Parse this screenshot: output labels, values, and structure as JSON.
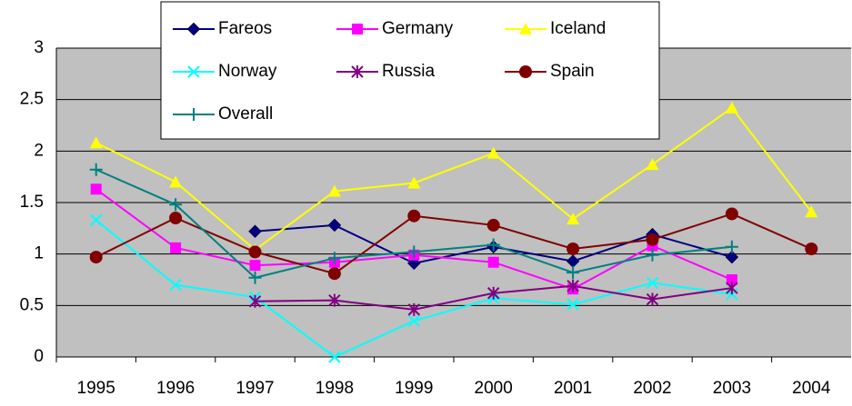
{
  "chart_data": {
    "type": "line",
    "categories": [
      "1995",
      "1996",
      "1997",
      "1998",
      "1999",
      "2000",
      "2001",
      "2002",
      "2003",
      "2004"
    ],
    "series": [
      {
        "name": "Fareos",
        "color": "#000080",
        "marker": "diamond",
        "values": [
          null,
          null,
          1.22,
          1.28,
          0.91,
          1.07,
          0.93,
          1.19,
          0.97,
          null
        ]
      },
      {
        "name": "Germany",
        "color": "#ff00ff",
        "marker": "square",
        "values": [
          1.63,
          1.06,
          0.89,
          0.92,
          0.99,
          0.92,
          0.66,
          1.08,
          0.75,
          null
        ]
      },
      {
        "name": "Iceland",
        "color": "#ffff00",
        "marker": "triangle",
        "values": [
          2.08,
          1.7,
          1.04,
          1.61,
          1.69,
          1.98,
          1.34,
          1.87,
          2.42,
          1.41
        ]
      },
      {
        "name": "Norway",
        "color": "#00ffff",
        "marker": "x",
        "values": [
          1.33,
          0.7,
          0.58,
          0.0,
          0.35,
          0.57,
          0.51,
          0.72,
          0.61,
          null
        ]
      },
      {
        "name": "Russia",
        "color": "#800080",
        "marker": "asterisk",
        "values": [
          null,
          null,
          0.54,
          0.55,
          0.46,
          0.62,
          0.69,
          0.56,
          0.67,
          null
        ]
      },
      {
        "name": "Spain",
        "color": "#800000",
        "marker": "circle",
        "values": [
          0.97,
          1.35,
          1.02,
          0.81,
          1.37,
          1.28,
          1.05,
          1.14,
          1.39,
          1.05
        ]
      },
      {
        "name": "Overall",
        "color": "#008080",
        "marker": "plus",
        "values": [
          1.82,
          1.48,
          0.77,
          0.96,
          1.02,
          1.09,
          0.82,
          0.99,
          1.07,
          null
        ]
      }
    ],
    "ylim": [
      0,
      3
    ],
    "yticks": [
      0,
      0.5,
      1,
      1.5,
      2,
      2.5,
      3
    ],
    "grid": true,
    "legend": "top"
  }
}
